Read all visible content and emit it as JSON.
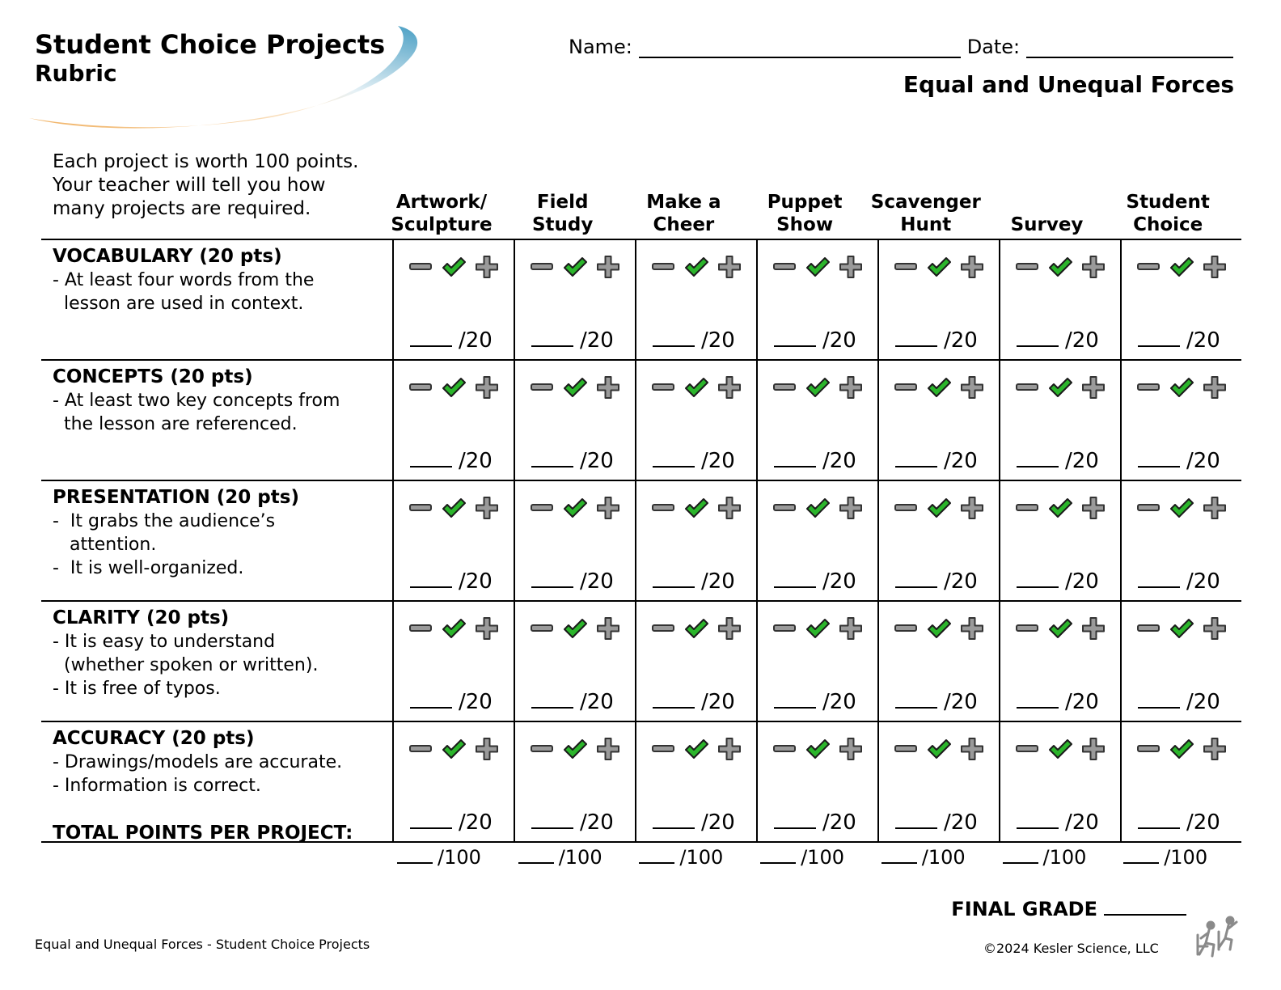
{
  "header": {
    "title": "Student Choice Projects",
    "subtitle": "Rubric",
    "name_label": "Name:",
    "date_label": "Date:",
    "topic": "Equal and Unequal Forces"
  },
  "intro": "Each project is worth 100 points. Your teacher will tell you how many projects are required.",
  "columns": [
    {
      "line1": "Artwork/",
      "line2": "Sculpture"
    },
    {
      "line1": "Field",
      "line2": "Study"
    },
    {
      "line1": "Make a",
      "line2": "Cheer"
    },
    {
      "line1": "Puppet",
      "line2": "Show"
    },
    {
      "line1": "Scavenger",
      "line2": "Hunt"
    },
    {
      "line1": "",
      "line2": "Survey"
    },
    {
      "line1": "Student",
      "line2": "Choice"
    }
  ],
  "criteria": [
    {
      "title": "VOCABULARY (20 pts)",
      "lines": [
        "- At least four words from the",
        "  lesson are used in context."
      ],
      "score": "/20"
    },
    {
      "title": "CONCEPTS (20 pts)",
      "lines": [
        "- At least two key concepts from",
        "  the lesson are referenced."
      ],
      "score": "/20"
    },
    {
      "title": "PRESENTATION (20 pts)",
      "lines": [
        "-  It grabs the audience’s",
        "   attention.",
        "-  It is well-organized."
      ],
      "score": "/20"
    },
    {
      "title": "CLARITY (20 pts)",
      "lines": [
        "- It is easy to understand",
        "  (whether spoken or written).",
        "- It is free of typos."
      ],
      "score": "/20"
    },
    {
      "title": "ACCURACY (20 pts)",
      "lines": [
        "- Drawings/models are accurate.",
        "- Information is correct."
      ],
      "score": "/20"
    }
  ],
  "icons": [
    "minus-icon",
    "check-icon",
    "plus-icon"
  ],
  "colors": {
    "check": "#2bb52b",
    "icon_gray": "#9a9a9a",
    "swoosh_blue": "#4a9fc4",
    "swoosh_orange": "#f0b060"
  },
  "total": {
    "label": "TOTAL POINTS PER PROJECT:",
    "score": "/100"
  },
  "final_grade": "FINAL GRADE",
  "footer": {
    "left": "Equal and Unequal Forces - Student Choice Projects",
    "right": "©2024  Kesler Science, LLC"
  }
}
